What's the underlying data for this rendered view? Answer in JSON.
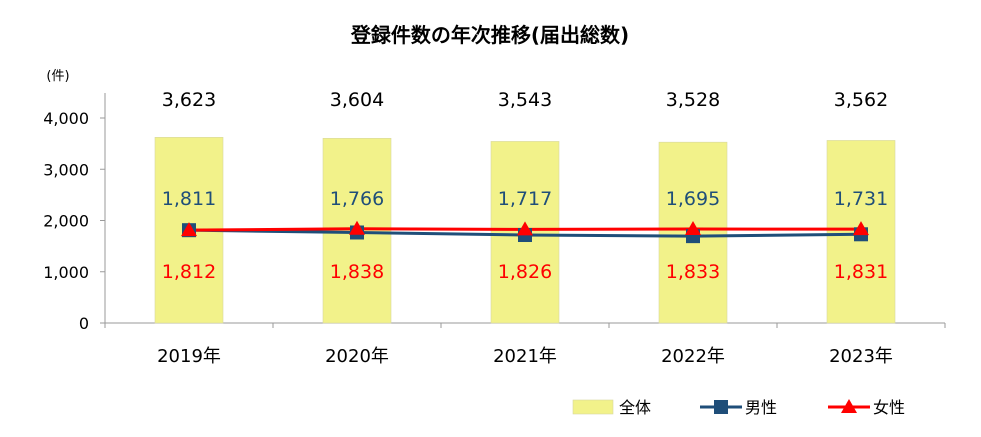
{
  "chart_data": {
    "type": "bar",
    "title": "登録件数の年次推移(届出総数)",
    "unit_label": "(件)",
    "categories": [
      "2019年",
      "2020年",
      "2021年",
      "2022年",
      "2023年"
    ],
    "ylim": [
      0,
      4000
    ],
    "yticks": [
      "0",
      "1,000",
      "2,000",
      "3,000",
      "4,000"
    ],
    "ytick_values": [
      0,
      1000,
      2000,
      3000,
      4000
    ],
    "grid": false,
    "legend_position": "bottom-right",
    "series": [
      {
        "name": "全体",
        "kind": "bar",
        "color": "#f2f28a",
        "values": [
          3623,
          3604,
          3543,
          3528,
          3562
        ],
        "labels": [
          "3,623",
          "3,604",
          "3,543",
          "3,528",
          "3,562"
        ]
      },
      {
        "name": "男性",
        "kind": "line",
        "marker": "square",
        "color": "#1f4e79",
        "values": [
          1811,
          1766,
          1717,
          1695,
          1731
        ],
        "labels": [
          "1,811",
          "1,766",
          "1,717",
          "1,695",
          "1,731"
        ]
      },
      {
        "name": "女性",
        "kind": "line",
        "marker": "triangle",
        "color": "#ff0000",
        "values": [
          1812,
          1838,
          1826,
          1833,
          1831
        ],
        "labels": [
          "1,812",
          "1,838",
          "1,826",
          "1,833",
          "1,831"
        ]
      }
    ]
  }
}
